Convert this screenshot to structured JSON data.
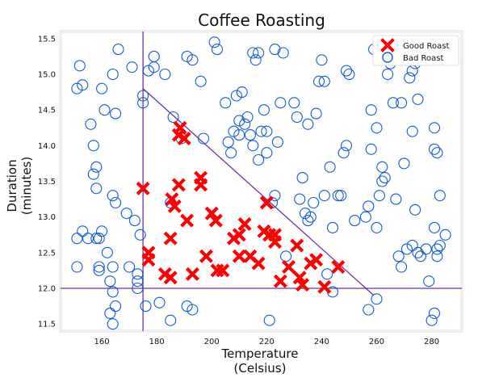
{
  "chart_data": {
    "type": "scatter",
    "title": "Coffee Roasting",
    "xlabel": [
      "Temperature",
      "(Celsius)"
    ],
    "ylabel": [
      "Duration",
      "(minutes)"
    ],
    "xlim": [
      145,
      291
    ],
    "ylim": [
      11.4,
      15.6
    ],
    "xticks": [
      160,
      180,
      200,
      220,
      240,
      260,
      280
    ],
    "yticks": [
      11.5,
      12.0,
      12.5,
      13.0,
      13.5,
      14.0,
      14.5,
      15.0,
      15.5
    ],
    "grid": false,
    "legend_position": "top-right",
    "colors": {
      "good": "#ff0000",
      "bad": "#0d5bd6",
      "line": "#7030a0",
      "frame": "#eeeeee"
    },
    "decision_lines": [
      {
        "x1": 175,
        "y1": 11.4,
        "x2": 175,
        "y2": 15.6
      },
      {
        "x1": 145,
        "y1": 12.0,
        "x2": 291,
        "y2": 12.0
      },
      {
        "x1": 175,
        "y1": 14.8,
        "x2": 259,
        "y2": 11.9
      }
    ],
    "series": [
      {
        "name": "Good Roast",
        "marker": "x",
        "points": [
          [
            175.0,
            13.4
          ],
          [
            177.0,
            12.5
          ],
          [
            177.0,
            12.4
          ],
          [
            183.0,
            12.2
          ],
          [
            185.0,
            12.15
          ],
          [
            185.0,
            12.7
          ],
          [
            185.5,
            13.25
          ],
          [
            186.5,
            13.15
          ],
          [
            188,
            14.15
          ],
          [
            188.5,
            14.25
          ],
          [
            190,
            14.1
          ],
          [
            188,
            13.45
          ],
          [
            191,
            12.95
          ],
          [
            193,
            12.2
          ],
          [
            196,
            13.55
          ],
          [
            196,
            13.45
          ],
          [
            198,
            12.45
          ],
          [
            200,
            13.05
          ],
          [
            201.5,
            12.95
          ],
          [
            202,
            12.25
          ],
          [
            204,
            12.25
          ],
          [
            208,
            12.7
          ],
          [
            210,
            12.75
          ],
          [
            210,
            12.45
          ],
          [
            212,
            12.9
          ],
          [
            214,
            12.45
          ],
          [
            217,
            12.35
          ],
          [
            219,
            12.8
          ],
          [
            220,
            13.2
          ],
          [
            221,
            12.75
          ],
          [
            223,
            12.75
          ],
          [
            223,
            12.65
          ],
          [
            225,
            12.1
          ],
          [
            228,
            12.3
          ],
          [
            231,
            12.6
          ],
          [
            232,
            12.15
          ],
          [
            233,
            12.05
          ],
          [
            236,
            12.35
          ],
          [
            238,
            12.4
          ],
          [
            241,
            12.02
          ],
          [
            246,
            12.3
          ]
        ]
      },
      {
        "name": "Bad Roast",
        "marker": "o",
        "points": [
          [
            151,
            14.8
          ],
          [
            152,
            15.12
          ],
          [
            153,
            14.85
          ],
          [
            151,
            12.7
          ],
          [
            151,
            12.3
          ],
          [
            153,
            12.8
          ],
          [
            155,
            12.7
          ],
          [
            156,
            14.3
          ],
          [
            157,
            14.0
          ],
          [
            157,
            13.6
          ],
          [
            158,
            13.7
          ],
          [
            158,
            13.4
          ],
          [
            158,
            12.7
          ],
          [
            159,
            12.7
          ],
          [
            159,
            12.3
          ],
          [
            159,
            12.25
          ],
          [
            160,
            14.8
          ],
          [
            160,
            12.8
          ],
          [
            161,
            14.5
          ],
          [
            162,
            12.5
          ],
          [
            163,
            12.1
          ],
          [
            163,
            11.65
          ],
          [
            164,
            11.5
          ],
          [
            164,
            13.3
          ],
          [
            164,
            15.0
          ],
          [
            164,
            12.3
          ],
          [
            164,
            11.95
          ],
          [
            165,
            11.75
          ],
          [
            165,
            13.2
          ],
          [
            165,
            14.45
          ],
          [
            166,
            15.35
          ],
          [
            169,
            13.05
          ],
          [
            170,
            12.3
          ],
          [
            171,
            15.1
          ],
          [
            172,
            12.95
          ],
          [
            173,
            12.2
          ],
          [
            173,
            12.1
          ],
          [
            173,
            12.0
          ],
          [
            174,
            12.75
          ],
          [
            175,
            14.7
          ],
          [
            175,
            14.6
          ],
          [
            176,
            11.75
          ],
          [
            177,
            15.05
          ],
          [
            179,
            15.1
          ],
          [
            179,
            15.25
          ],
          [
            181,
            11.8
          ],
          [
            183,
            15.0
          ],
          [
            185,
            13.2
          ],
          [
            185,
            11.55
          ],
          [
            186,
            14.4
          ],
          [
            189,
            14.1
          ],
          [
            191,
            15.25
          ],
          [
            191,
            11.75
          ],
          [
            193,
            11.7
          ],
          [
            193,
            15.2
          ],
          [
            196,
            14.9
          ],
          [
            197,
            14.1
          ],
          [
            201,
            15.45
          ],
          [
            202,
            15.35
          ],
          [
            205,
            14.6
          ],
          [
            206,
            14.05
          ],
          [
            207,
            13.9
          ],
          [
            208,
            14.2
          ],
          [
            209,
            14.7
          ],
          [
            210,
            14.35
          ],
          [
            210,
            14.15
          ],
          [
            211,
            14.75
          ],
          [
            212,
            14.3
          ],
          [
            213,
            14.4
          ],
          [
            214,
            14.15
          ],
          [
            215,
            14.0
          ],
          [
            215,
            15.3
          ],
          [
            216,
            15.2
          ],
          [
            217,
            13.8
          ],
          [
            217,
            15.3
          ],
          [
            218,
            14.2
          ],
          [
            219,
            14.5
          ],
          [
            220,
            14.2
          ],
          [
            220,
            13.9
          ],
          [
            221,
            11.55
          ],
          [
            222,
            13.2
          ],
          [
            223,
            13.3
          ],
          [
            223,
            15.35
          ],
          [
            224,
            14.05
          ],
          [
            225,
            14.6
          ],
          [
            226,
            15.3
          ],
          [
            227,
            12.45
          ],
          [
            230,
            14.6
          ],
          [
            231,
            14.4
          ],
          [
            232,
            13.25
          ],
          [
            233,
            13.55
          ],
          [
            234,
            13.05
          ],
          [
            235,
            12.95
          ],
          [
            235,
            14.3
          ],
          [
            236,
            13.0
          ],
          [
            237,
            13.2
          ],
          [
            238,
            14.45
          ],
          [
            239,
            14.9
          ],
          [
            240,
            15.2
          ],
          [
            241,
            13.3
          ],
          [
            241,
            14.9
          ],
          [
            242,
            12.2
          ],
          [
            243,
            13.7
          ],
          [
            244,
            12.85
          ],
          [
            244,
            11.95
          ],
          [
            246,
            13.3
          ],
          [
            247,
            13.3
          ],
          [
            248,
            13.9
          ],
          [
            249,
            14.0
          ],
          [
            249,
            15.05
          ],
          [
            250,
            15.0
          ],
          [
            252,
            12.95
          ],
          [
            256,
            13.0
          ],
          [
            257,
            13.15
          ],
          [
            257,
            11.7
          ],
          [
            258,
            14.5
          ],
          [
            258,
            13.95
          ],
          [
            259,
            15.35
          ],
          [
            260,
            14.25
          ],
          [
            260,
            12.85
          ],
          [
            260,
            11.85
          ],
          [
            261,
            13.3
          ],
          [
            262,
            13.7
          ],
          [
            262,
            13.5
          ],
          [
            263,
            13.55
          ],
          [
            264,
            15.3
          ],
          [
            264,
            15.0
          ],
          [
            265,
            15.15
          ],
          [
            266,
            14.6
          ],
          [
            267,
            13.25
          ],
          [
            268,
            12.45
          ],
          [
            269,
            12.3
          ],
          [
            269,
            14.6
          ],
          [
            270,
            13.75
          ],
          [
            271,
            12.55
          ],
          [
            272,
            14.95
          ],
          [
            273,
            15.05
          ],
          [
            273,
            14.2
          ],
          [
            273,
            12.6
          ],
          [
            274,
            15.15
          ],
          [
            274,
            13.1
          ],
          [
            275,
            12.5
          ],
          [
            275,
            14.65
          ],
          [
            276,
            12.45
          ],
          [
            277,
            15.3
          ],
          [
            278,
            12.55
          ],
          [
            279,
            12.1
          ],
          [
            280,
            11.55
          ],
          [
            281,
            14.25
          ],
          [
            281,
            13.95
          ],
          [
            281,
            12.85
          ],
          [
            281,
            11.65
          ],
          [
            282,
            13.9
          ],
          [
            282,
            12.55
          ],
          [
            282,
            12.45
          ],
          [
            283,
            13.3
          ],
          [
            283,
            12.6
          ],
          [
            285,
            12.75
          ]
        ]
      }
    ]
  }
}
